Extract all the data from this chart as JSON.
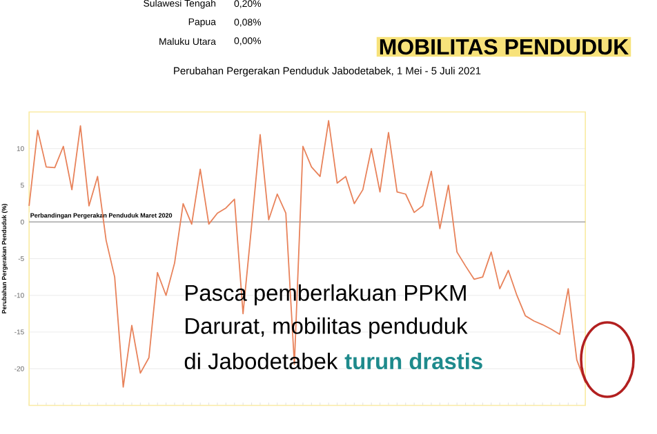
{
  "chart_data": {
    "type": "line",
    "title": "MOBILITAS PENDUDUK",
    "subtitle": "Perubahan Pergerakan Penduduk Jabodetabek, 1 Mei - 5 Juli 2021",
    "ylabel": "Perubahan Pergerakan Penduduk (%)",
    "categories": [
      null,
      null,
      null,
      null,
      null,
      null,
      null,
      null,
      null,
      null,
      null,
      null,
      null,
      null,
      null,
      null,
      null,
      null,
      null,
      null,
      null,
      null,
      null,
      null,
      null,
      null,
      null,
      null,
      null,
      null,
      null,
      null,
      null,
      null,
      null,
      null,
      null,
      null,
      null,
      null,
      null,
      null,
      null,
      null,
      null,
      null,
      null,
      null,
      null,
      null,
      null,
      null,
      null,
      null,
      null,
      null,
      null,
      null,
      null,
      null,
      null,
      null,
      null,
      null,
      null,
      null
    ],
    "series": [
      {
        "color": "#e8825a",
        "values": [
          2.2,
          12.5,
          7.5,
          7.4,
          10.3,
          4.4,
          13.1,
          2.2,
          6.2,
          -2.5,
          -7.5,
          -22.5,
          -14.1,
          -20.6,
          -18.5,
          -6.9,
          -10,
          -5.6,
          2.5,
          -0.3,
          7.2,
          -0.3,
          1.2,
          1.9,
          3.1,
          -12.5,
          -0.5,
          11.9,
          0.3,
          3.8,
          1.2,
          -19.4,
          10.3,
          7.5,
          6.2,
          13.8,
          5.3,
          6.2,
          2.5,
          4.4,
          10,
          4.1,
          12.2,
          4.1,
          3.8,
          1.3,
          2.2,
          6.9,
          -0.9,
          5,
          -4.1,
          -6,
          -7.8,
          -7.5,
          -4.1,
          -9.1,
          -6.6,
          -10,
          -12.8,
          -13.5,
          -14,
          -14.6,
          -15.3,
          -9.1,
          -18.8,
          -21.9
        ]
      }
    ],
    "ylim": [
      -25,
      15
    ],
    "yticks": [
      10,
      5,
      0,
      -5,
      -10,
      -15,
      -20
    ],
    "grid": "y",
    "tick_labels": "y",
    "marker": "none",
    "ref_lines": [
      {
        "axis": "y",
        "value": 0,
        "label": "Perbandingan Pergerakan Penduduk Maret 2020",
        "color": "#9a9a9a"
      }
    ],
    "annotations": [
      "Sulawesi Tengah",
      "0,20%",
      "Papua",
      "0,08%",
      "Maluku Utara",
      "0,00%",
      "Pasca pemberlakuan PPKM",
      "Darurat, mobilitas penduduk",
      "di Jabodetabek",
      "turun drastis"
    ]
  }
}
